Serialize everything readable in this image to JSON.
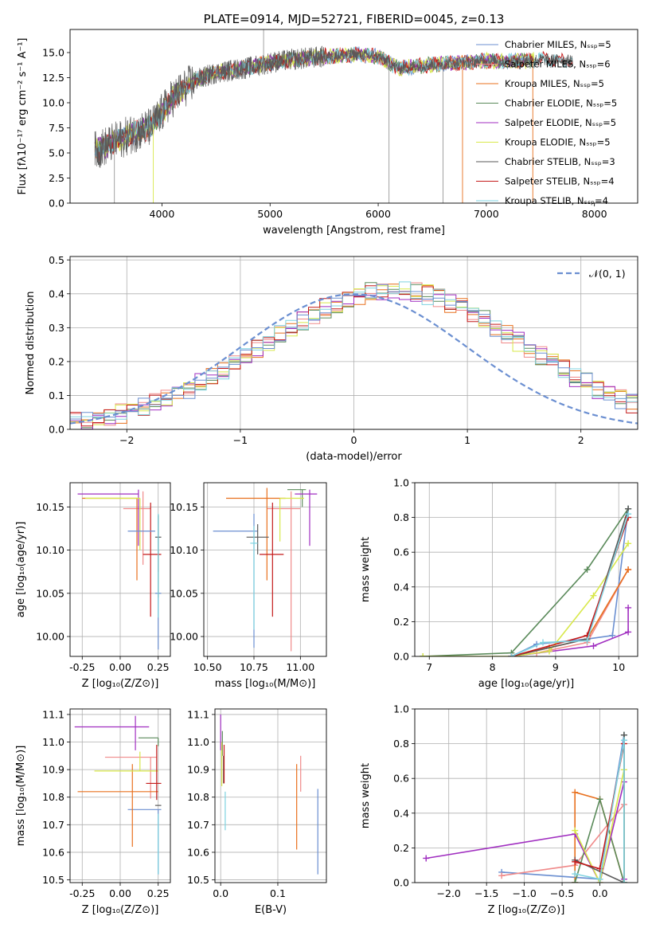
{
  "colors": {
    "chabrier_miles": "#6b8fd1",
    "salpeter_miles": "#f08a8a",
    "kroupa_miles": "#e8701e",
    "chabrier_elodie": "#5a8a5a",
    "salpeter_elodie": "#a02ec0",
    "kroupa_elodie": "#d8e84a",
    "chabrier_stelib": "#5a5a5a",
    "salpeter_stelib": "#c41a1a",
    "kroupa_stelib": "#7fd3e0",
    "gaussian": "#6b8fd1",
    "grid": "#b0b0b0"
  },
  "chart_data": [
    {
      "id": "spectrum",
      "type": "line",
      "title": "PLATE=0914, MJD=52721, FIBERID=0045, z=0.13",
      "xlabel": "wavelength [Angstrom, rest frame]",
      "ylabel": "Flux [fλ10⁻¹⁷ erg cm⁻² s⁻¹ A⁻¹]",
      "xlim": [
        3150,
        8400
      ],
      "ylim": [
        0,
        17.3
      ],
      "xticks": [
        4000,
        5000,
        6000,
        7000,
        8000
      ],
      "yticks": [
        0.0,
        2.5,
        5.0,
        7.5,
        10.0,
        12.5,
        15.0
      ],
      "legend": [
        "Chabrier MILES, Nₛₛₚ=5",
        "Salpeter MILES, Nₛₛₚ=6",
        "Kroupa MILES, Nₛₛₚ=5",
        "Chabrier ELODIE, Nₛₛₚ=5",
        "Salpeter ELODIE, Nₛₛₚ=5",
        "Kroupa ELODIE, Nₛₛₚ=5",
        "Chabrier STELIB, Nₛₛₚ=3",
        "Salpeter STELIB, Nₛₛₚ=4",
        "Kroupa STELIB, Nₛₛₚ=4"
      ],
      "legend_position": "right",
      "series_keys": [
        "chabrier_miles",
        "salpeter_miles",
        "kroupa_miles",
        "chabrier_elodie",
        "salpeter_elodie",
        "kroupa_elodie",
        "chabrier_stelib",
        "salpeter_stelib",
        "kroupa_stelib"
      ],
      "continuum": {
        "x": [
          3380,
          3500,
          3700,
          3900,
          4000,
          4100,
          4300,
          4500,
          4800,
          5000,
          5200,
          5500,
          5800,
          6000,
          6200,
          6500,
          6800,
          7000,
          7200,
          7500,
          7800
        ],
        "y": [
          5.2,
          5.8,
          6.8,
          7.6,
          9.0,
          10.5,
          12.2,
          13.0,
          13.5,
          14.0,
          14.3,
          14.6,
          14.8,
          14.6,
          13.4,
          13.8,
          14.0,
          14.2,
          14.1,
          14.3,
          14.2
        ]
      },
      "spikes": [
        {
          "x": 3560,
          "y": 0
        },
        {
          "x": 3920,
          "y": 0
        },
        {
          "x": 4940,
          "y": 17.3
        },
        {
          "x": 6100,
          "y": 0
        },
        {
          "x": 6600,
          "y": 0
        },
        {
          "x": 6780,
          "y": 0
        },
        {
          "x": 7430,
          "y": 0
        }
      ]
    },
    {
      "id": "residuals",
      "type": "histogram",
      "xlabel": "(data-model)/error",
      "ylabel": "Normed distribution",
      "xlim": [
        -2.5,
        2.5
      ],
      "ylim": [
        0,
        0.51
      ],
      "xticks": [
        -2,
        -1,
        0,
        1,
        2
      ],
      "yticks": [
        0.0,
        0.1,
        0.2,
        0.3,
        0.4,
        0.5
      ],
      "legend": [
        "𝒩(0, 1)"
      ],
      "legend_position": "top-right",
      "bin_width": 0.1
    },
    {
      "id": "age_vs_Z",
      "type": "errorbar",
      "xlabel": "Z [log₁₀(Z/Z⊙)]",
      "ylabel": "age  [log₁₀(age/yr)]",
      "xlim": [
        -0.33,
        0.33
      ],
      "ylim": [
        9.977,
        10.178
      ],
      "xticks": [
        -0.25,
        0.0,
        0.25
      ],
      "yticks": [
        10.0,
        10.05,
        10.1,
        10.15
      ],
      "points": [
        {
          "k": "chabrier_miles",
          "x": 0.25,
          "y": 10.05,
          "xerr": [
            0.02,
            0.02
          ],
          "yerr": [
            0.065,
            0.09
          ]
        },
        {
          "k": "salpeter_miles",
          "x": 0.15,
          "y": 10.148,
          "xerr": [
            0.13,
            0.05
          ],
          "yerr": [
            0.065,
            0.02
          ]
        },
        {
          "k": "kroupa_miles",
          "x": 0.11,
          "y": 10.16,
          "xerr": [
            0.36,
            0.0
          ],
          "yerr": [
            0.095,
            0.0
          ]
        },
        {
          "k": "chabrier_elodie",
          "x": 0.25,
          "y": 10.115,
          "xerr": [
            0.0,
            0.0
          ],
          "yerr": [
            0.07,
            0.026
          ]
        },
        {
          "k": "salpeter_elodie",
          "x": 0.12,
          "y": 10.165,
          "xerr": [
            0.4,
            0.0
          ],
          "yerr": [
            0.06,
            0.005
          ]
        },
        {
          "k": "kroupa_elodie",
          "x": 0.13,
          "y": 10.16,
          "xerr": [
            0.36,
            0.0
          ],
          "yerr": [
            0.06,
            0.0
          ]
        },
        {
          "k": "chabrier_stelib",
          "x": 0.25,
          "y": 10.115,
          "xerr": [
            0.02,
            0.02
          ],
          "yerr": [
            0.04,
            0.025
          ]
        },
        {
          "k": "salpeter_stelib",
          "x": 0.2,
          "y": 10.095,
          "xerr": [
            0.05,
            0.07
          ],
          "yerr": [
            0.072,
            0.06
          ]
        },
        {
          "k": "kroupa_stelib",
          "x": 0.25,
          "y": 10.122,
          "xerr": [
            0.0,
            0.0
          ],
          "yerr": [
            0.1,
            0.02
          ]
        },
        {
          "k": "chabrier_miles",
          "x": 0.15,
          "y": 10.122,
          "xerr": [
            0.1,
            0.08
          ],
          "yerr": [
            0.0,
            0.0
          ]
        }
      ]
    },
    {
      "id": "age_vs_mass",
      "type": "errorbar",
      "xlabel": "mass [log₁₀(M/M⊙)]",
      "ylabel": "",
      "xlim": [
        10.48,
        11.14
      ],
      "ylim": [
        9.977,
        10.178
      ],
      "xticks": [
        10.5,
        10.75,
        11.0
      ],
      "yticks": [
        10.0,
        10.05,
        10.1,
        10.15
      ],
      "points": [
        {
          "k": "chabrier_miles",
          "x": 10.75,
          "y": 10.122,
          "xerr": [
            0.22,
            0.02
          ],
          "yerr": [
            0.135,
            0.02
          ]
        },
        {
          "k": "salpeter_miles",
          "x": 10.95,
          "y": 10.148,
          "xerr": [
            0.13,
            0.05
          ],
          "yerr": [
            0.165,
            0.02
          ]
        },
        {
          "k": "kroupa_miles",
          "x": 10.82,
          "y": 10.16,
          "xerr": [
            0.22,
            0.1
          ],
          "yerr": [
            0.095,
            0.012
          ]
        },
        {
          "k": "chabrier_elodie",
          "x": 11.01,
          "y": 10.17,
          "xerr": [
            0.08,
            0.02
          ],
          "yerr": [
            0.02,
            0.0
          ]
        },
        {
          "k": "salpeter_elodie",
          "x": 11.05,
          "y": 10.165,
          "xerr": [
            0.08,
            0.04
          ],
          "yerr": [
            0.06,
            0.005
          ]
        },
        {
          "k": "kroupa_elodie",
          "x": 10.89,
          "y": 10.16,
          "xerr": [
            0.0,
            0.13
          ],
          "yerr": [
            0.05,
            0.0
          ]
        },
        {
          "k": "chabrier_stelib",
          "x": 10.77,
          "y": 10.115,
          "xerr": [
            0.06,
            0.06
          ],
          "yerr": [
            0.02,
            0.015
          ]
        },
        {
          "k": "salpeter_stelib",
          "x": 10.85,
          "y": 10.095,
          "xerr": [
            0.07,
            0.06
          ],
          "yerr": [
            0.072,
            0.06
          ]
        },
        {
          "k": "kroupa_stelib",
          "x": 10.75,
          "y": 10.108,
          "xerr": [
            0.02,
            0.02
          ],
          "yerr": [
            0.1,
            0.02
          ]
        }
      ]
    },
    {
      "id": "weight_vs_age",
      "type": "line",
      "xlabel": "age  [log₁₀(age/yr)]",
      "ylabel": "mass weight",
      "xlim": [
        6.77,
        10.3
      ],
      "ylim": [
        0,
        1.0
      ],
      "xticks": [
        7,
        8,
        9,
        10
      ],
      "yticks": [
        0.0,
        0.2,
        0.4,
        0.6,
        0.8,
        1.0
      ],
      "series": [
        {
          "k": "chabrier_miles",
          "x": [
            8.3,
            8.7,
            9.5,
            9.9,
            10.15
          ],
          "y": [
            0.0,
            0.07,
            0.1,
            0.12,
            0.85
          ]
        },
        {
          "k": "salpeter_miles",
          "x": [
            8.3,
            8.7,
            9.5,
            10.15
          ],
          "y": [
            0.0,
            0.02,
            0.08,
            0.5
          ]
        },
        {
          "k": "kroupa_miles",
          "x": [
            8.3,
            8.9,
            9.5,
            10.15
          ],
          "y": [
            0.0,
            0.05,
            0.1,
            0.5
          ]
        },
        {
          "k": "chabrier_elodie",
          "x": [
            6.9,
            8.3,
            9.5,
            10.15
          ],
          "y": [
            0.0,
            0.02,
            0.5,
            0.85
          ]
        },
        {
          "k": "salpeter_elodie",
          "x": [
            8.3,
            9.6,
            10.15,
            10.15
          ],
          "y": [
            0.0,
            0.06,
            0.14,
            0.28
          ]
        },
        {
          "k": "kroupa_elodie",
          "x": [
            6.9,
            8.3,
            8.9,
            9.6,
            10.15
          ],
          "y": [
            0.0,
            0.0,
            0.03,
            0.35,
            0.65
          ]
        },
        {
          "k": "chabrier_stelib",
          "x": [
            8.3,
            9.5,
            10.15
          ],
          "y": [
            0.0,
            0.1,
            0.85
          ]
        },
        {
          "k": "salpeter_stelib",
          "x": [
            8.3,
            9.5,
            10.15
          ],
          "y": [
            0.0,
            0.12,
            0.8
          ]
        },
        {
          "k": "kroupa_stelib",
          "x": [
            8.3,
            8.8,
            9.5,
            10.15
          ],
          "y": [
            0.0,
            0.08,
            0.09,
            0.82
          ]
        }
      ]
    },
    {
      "id": "mass_vs_Z",
      "type": "errorbar",
      "xlabel": "Z [log₁₀(Z/Z⊙)]",
      "ylabel": "mass [log₁₀(M/M⊙)]",
      "xlim": [
        -0.33,
        0.33
      ],
      "ylim": [
        10.49,
        11.12
      ],
      "xticks": [
        -0.25,
        0.0,
        0.25
      ],
      "yticks": [
        10.5,
        10.6,
        10.7,
        10.8,
        10.9,
        11.0,
        11.1
      ],
      "points": [
        {
          "k": "chabrier_miles",
          "x": 0.25,
          "y": 10.755,
          "xerr": [
            0.2,
            0.02
          ],
          "yerr": [
            0.235,
            0.0
          ]
        },
        {
          "k": "salpeter_miles",
          "x": 0.2,
          "y": 10.945,
          "xerr": [
            0.3,
            0.04
          ],
          "yerr": [
            0.15,
            0.0
          ]
        },
        {
          "k": "kroupa_miles",
          "x": 0.08,
          "y": 10.82,
          "xerr": [
            0.36,
            0.17
          ],
          "yerr": [
            0.2,
            0.1
          ]
        },
        {
          "k": "chabrier_elodie",
          "x": 0.25,
          "y": 11.015,
          "xerr": [
            0.13,
            0.0
          ],
          "yerr": [
            0.03,
            0.0
          ]
        },
        {
          "k": "salpeter_elodie",
          "x": 0.1,
          "y": 11.055,
          "xerr": [
            0.4,
            0.09
          ],
          "yerr": [
            0.085,
            0.04
          ]
        },
        {
          "k": "kroupa_elodie",
          "x": 0.13,
          "y": 10.895,
          "xerr": [
            0.3,
            0.12
          ],
          "yerr": [
            0.0,
            0.07
          ]
        },
        {
          "k": "chabrier_stelib",
          "x": 0.25,
          "y": 10.77,
          "xerr": [
            0.02,
            0.02
          ],
          "yerr": [
            0.0,
            0.0
          ]
        },
        {
          "k": "salpeter_stelib",
          "x": 0.24,
          "y": 10.85,
          "xerr": [
            0.07,
            0.03
          ],
          "yerr": [
            0.06,
            0.14
          ]
        },
        {
          "k": "kroupa_stelib",
          "x": 0.25,
          "y": 10.72,
          "xerr": [
            0.0,
            0.0
          ],
          "yerr": [
            0.2,
            0.02
          ]
        }
      ]
    },
    {
      "id": "mass_vs_ebv",
      "type": "errorbar",
      "xlabel": "E(B-V)",
      "ylabel": "",
      "xlim": [
        -0.01,
        0.185
      ],
      "ylim": [
        10.49,
        11.12
      ],
      "xticks": [
        0.0,
        0.1
      ],
      "yticks": [
        10.5,
        10.6,
        10.7,
        10.8,
        10.9,
        11.0,
        11.1
      ],
      "points": [
        {
          "k": "chabrier_miles",
          "x": 0.17,
          "y": 10.68,
          "xerr": [
            0,
            0
          ],
          "yerr": [
            0.16,
            0.15
          ]
        },
        {
          "k": "salpeter_miles",
          "x": 0.14,
          "y": 10.88,
          "xerr": [
            0,
            0
          ],
          "yerr": [
            0.06,
            0.07
          ]
        },
        {
          "k": "kroupa_miles",
          "x": 0.133,
          "y": 10.77,
          "xerr": [
            0,
            0
          ],
          "yerr": [
            0.16,
            0.15
          ]
        },
        {
          "k": "chabrier_elodie",
          "x": 0.003,
          "y": 11.0,
          "xerr": [
            0,
            0
          ],
          "yerr": [
            0.05,
            0.04
          ]
        },
        {
          "k": "salpeter_elodie",
          "x": 0.0,
          "y": 11.05,
          "xerr": [
            0,
            0
          ],
          "yerr": [
            0.08,
            0.05
          ]
        },
        {
          "k": "kroupa_elodie",
          "x": 0.002,
          "y": 10.94,
          "xerr": [
            0,
            0
          ],
          "yerr": [
            0.1,
            0.06
          ]
        },
        {
          "k": "chabrier_stelib",
          "x": 0.005,
          "y": 10.9,
          "xerr": [
            0,
            0
          ],
          "yerr": [
            0.05,
            0.05
          ]
        },
        {
          "k": "salpeter_stelib",
          "x": 0.006,
          "y": 10.91,
          "xerr": [
            0,
            0
          ],
          "yerr": [
            0.06,
            0.08
          ]
        },
        {
          "k": "kroupa_stelib",
          "x": 0.008,
          "y": 10.76,
          "xerr": [
            0,
            0
          ],
          "yerr": [
            0.08,
            0.06
          ]
        }
      ]
    },
    {
      "id": "weight_vs_Z",
      "type": "line",
      "xlabel": "Z [log₁₀(Z/Z⊙)]",
      "ylabel": "mass weight",
      "xlim": [
        -2.45,
        0.5
      ],
      "ylim": [
        0,
        1.0
      ],
      "xticks": [
        -2.0,
        -1.5,
        -1.0,
        -0.5,
        0.0
      ],
      "yticks": [
        0.0,
        0.2,
        0.4,
        0.6,
        0.8,
        1.0
      ],
      "series": [
        {
          "k": "chabrier_miles",
          "x": [
            -1.3,
            0.0,
            0.32,
            0.32
          ],
          "y": [
            0.06,
            0.02,
            0.85,
            0.0
          ]
        },
        {
          "k": "salpeter_miles",
          "x": [
            -1.3,
            -0.33,
            0.32,
            0.32
          ],
          "y": [
            0.04,
            0.1,
            0.45,
            0.0
          ]
        },
        {
          "k": "kroupa_miles",
          "x": [
            -0.33,
            -0.33,
            0.0,
            0.32
          ],
          "y": [
            0.0,
            0.52,
            0.48,
            0.0
          ]
        },
        {
          "k": "chabrier_elodie",
          "x": [
            -0.33,
            0.0,
            0.32,
            0.32
          ],
          "y": [
            0.0,
            0.48,
            0.0,
            0.85
          ]
        },
        {
          "k": "salpeter_elodie",
          "x": [
            -2.3,
            -0.33,
            0.0,
            0.32,
            0.32
          ],
          "y": [
            0.14,
            0.28,
            0.0,
            0.58,
            0.02
          ]
        },
        {
          "k": "kroupa_elodie",
          "x": [
            -0.33,
            0.0,
            0.32,
            0.32
          ],
          "y": [
            0.3,
            0.0,
            0.65,
            0.0
          ]
        },
        {
          "k": "chabrier_stelib",
          "x": [
            -0.33,
            0.32,
            0.32
          ],
          "y": [
            0.13,
            0.0,
            0.85
          ]
        },
        {
          "k": "salpeter_stelib",
          "x": [
            -0.33,
            0.0,
            0.32
          ],
          "y": [
            0.12,
            0.08,
            0.8
          ]
        },
        {
          "k": "kroupa_stelib",
          "x": [
            -0.33,
            0.0,
            0.32,
            0.32
          ],
          "y": [
            0.05,
            0.02,
            0.82,
            0.0
          ]
        }
      ]
    }
  ]
}
